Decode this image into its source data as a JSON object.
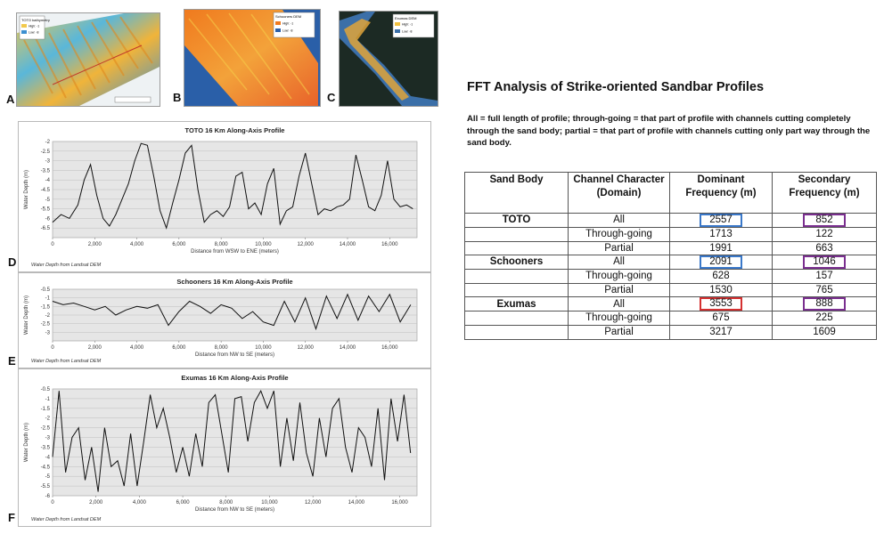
{
  "panel_letters": [
    "A",
    "B",
    "C",
    "D",
    "E",
    "F"
  ],
  "maps": {
    "a": {
      "legend_title": "TOTO bathymetry",
      "legend_items": [
        "High: -1",
        "Low: -8"
      ]
    },
    "b": {
      "legend_title": "Schooners DEM",
      "legend_items": [
        "High: -1",
        "Low: -8"
      ]
    },
    "c": {
      "legend_title": "Exumas DEM",
      "legend_items": [
        "High: -1",
        "Low: -8"
      ]
    }
  },
  "fft": {
    "title": "FFT Analysis of Strike-oriented Sandbar Profiles",
    "description": "All = full length of profile; through-going = that part of profile with channels cutting completely through the sand body; partial = that part of profile with channels cutting only part way through the sand body.",
    "headers": [
      "Sand Body",
      "Channel Character (Domain)",
      "Dominant Frequency (m)",
      "Secondary Frequency (m)"
    ],
    "rows": [
      {
        "sand_body": "TOTO",
        "character": "All",
        "dominant": "2557",
        "secondary": "852",
        "dominant_box": "blue",
        "secondary_box": "purple"
      },
      {
        "sand_body": "",
        "character": "Through-going",
        "dominant": "1713",
        "secondary": "122",
        "dominant_box": "",
        "secondary_box": ""
      },
      {
        "sand_body": "",
        "character": "Partial",
        "dominant": "1991",
        "secondary": "663",
        "dominant_box": "",
        "secondary_box": ""
      },
      {
        "sand_body": "Schooners",
        "character": "All",
        "dominant": "2091",
        "secondary": "1046",
        "dominant_box": "blue",
        "secondary_box": "purple"
      },
      {
        "sand_body": "",
        "character": "Through-going",
        "dominant": "628",
        "secondary": "157",
        "dominant_box": "",
        "secondary_box": ""
      },
      {
        "sand_body": "",
        "character": "Partial",
        "dominant": "1530",
        "secondary": "765",
        "dominant_box": "",
        "secondary_box": ""
      },
      {
        "sand_body": "Exumas",
        "character": "All",
        "dominant": "3553",
        "secondary": "888",
        "dominant_box": "red",
        "secondary_box": "purple"
      },
      {
        "sand_body": "",
        "character": "Through-going",
        "dominant": "675",
        "secondary": "225",
        "dominant_box": "",
        "secondary_box": ""
      },
      {
        "sand_body": "",
        "character": "Partial",
        "dominant": "3217",
        "secondary": "1609",
        "dominant_box": "",
        "secondary_box": ""
      }
    ],
    "colors": {
      "blue": "#3a78c9",
      "red": "#d43131",
      "purple": "#7a2f8f"
    }
  },
  "chart_data": [
    {
      "type": "line",
      "title": "TOTO 16 Km Along-Axis Profile",
      "xlabel": "Distance from WSW to ENE (meters)",
      "ylabel": "Water Depth (m)",
      "source": "Water Depth from Landsat DEM",
      "xlim": [
        0,
        17300
      ],
      "ylim": [
        -7,
        -2
      ],
      "xticks": [
        "0",
        "2,000",
        "4,000",
        "6,000",
        "8,000",
        "10,000",
        "12,000",
        "14,000",
        "16,000"
      ],
      "yticks": [
        "-2",
        "-2.5",
        "-3",
        "-3.5",
        "-4",
        "-4.5",
        "-5",
        "-5.5",
        "-6",
        "-6.5"
      ],
      "series": [
        {
          "x": [
            0,
            400,
            800,
            1200,
            1500,
            1800,
            2100,
            2400,
            2700,
            3000,
            3300,
            3600,
            3900,
            4200,
            4500,
            4800,
            5100,
            5400,
            5700,
            6000,
            6300,
            6600,
            6900,
            7200,
            7500,
            7800,
            8100,
            8400,
            8700,
            9000,
            9300,
            9600,
            9900,
            10200,
            10500,
            10800,
            11100,
            11400,
            11700,
            12000,
            12300,
            12600,
            12900,
            13200,
            13500,
            13800,
            14100,
            14400,
            14700,
            15000,
            15300,
            15600,
            15900,
            16200,
            16500,
            16800,
            17100
          ],
          "y": [
            -6.2,
            -5.8,
            -6.0,
            -5.3,
            -4.0,
            -3.2,
            -4.8,
            -6.0,
            -6.4,
            -5.8,
            -5.0,
            -4.2,
            -3.0,
            -2.1,
            -2.2,
            -3.8,
            -5.6,
            -6.5,
            -5.2,
            -4.0,
            -2.6,
            -2.2,
            -4.5,
            -6.2,
            -5.8,
            -5.6,
            -5.9,
            -5.4,
            -3.8,
            -3.6,
            -5.5,
            -5.2,
            -5.8,
            -4.2,
            -3.4,
            -6.3,
            -5.6,
            -5.4,
            -3.8,
            -2.6,
            -4.2,
            -5.8,
            -5.5,
            -5.6,
            -5.4,
            -5.3,
            -5.0,
            -2.7,
            -4.0,
            -5.4,
            -5.6,
            -4.8,
            -3.0,
            -5.0,
            -5.4,
            -5.3,
            -5.5
          ]
        }
      ]
    },
    {
      "type": "line",
      "title": "Schooners 16 Km Along-Axis Profile",
      "xlabel": "Distance from NW to SE (meters)",
      "ylabel": "Water Depth (m)",
      "source": "Water Depth from Landsat DEM",
      "xlim": [
        0,
        17300
      ],
      "ylim": [
        -3.5,
        -0.5
      ],
      "xticks": [
        "0",
        "2,000",
        "4,000",
        "6,000",
        "8,000",
        "10,000",
        "12,000",
        "14,000",
        "16,000"
      ],
      "yticks": [
        "-0.5",
        "-1",
        "-1.5",
        "-2",
        "-2.5",
        "-3"
      ],
      "series": [
        {
          "x": [
            0,
            500,
            1000,
            1500,
            2000,
            2500,
            3000,
            3500,
            4000,
            4500,
            5000,
            5500,
            6000,
            6500,
            7000,
            7500,
            8000,
            8500,
            9000,
            9500,
            10000,
            10500,
            11000,
            11500,
            12000,
            12500,
            13000,
            13500,
            14000,
            14500,
            15000,
            15500,
            16000,
            16500,
            17000
          ],
          "y": [
            -1.2,
            -1.4,
            -1.3,
            -1.5,
            -1.7,
            -1.5,
            -2.0,
            -1.7,
            -1.5,
            -1.6,
            -1.4,
            -2.6,
            -1.8,
            -1.2,
            -1.5,
            -1.9,
            -1.4,
            -1.6,
            -2.2,
            -1.8,
            -2.4,
            -2.6,
            -1.2,
            -2.4,
            -1.0,
            -2.8,
            -0.9,
            -2.2,
            -0.8,
            -2.3,
            -0.9,
            -1.8,
            -0.8,
            -2.4,
            -1.4
          ]
        }
      ]
    },
    {
      "type": "line",
      "title": "Exumas 16 Km Along-Axis Profile",
      "xlabel": "Distance from NW to SE (meters)",
      "ylabel": "Water Depth (m)",
      "source": "Water Depth from Landsat DEM",
      "xlim": [
        0,
        16800
      ],
      "ylim": [
        -6,
        -0.5
      ],
      "xticks": [
        "0",
        "2,000",
        "4,000",
        "6,000",
        "8,000",
        "10,000",
        "12,000",
        "14,000",
        "16,000"
      ],
      "yticks": [
        "-0.5",
        "-1",
        "-1.5",
        "-2",
        "-2.5",
        "-3",
        "-3.5",
        "-4",
        "-4.5",
        "-5",
        "-5.5",
        "-6"
      ],
      "series": [
        {
          "x": [
            0,
            300,
            600,
            900,
            1200,
            1500,
            1800,
            2100,
            2400,
            2700,
            3000,
            3300,
            3600,
            3900,
            4200,
            4500,
            4800,
            5100,
            5400,
            5700,
            6000,
            6300,
            6600,
            6900,
            7200,
            7500,
            7800,
            8100,
            8400,
            8700,
            9000,
            9300,
            9600,
            9900,
            10200,
            10500,
            10800,
            11100,
            11400,
            11700,
            12000,
            12300,
            12600,
            12900,
            13200,
            13500,
            13800,
            14100,
            14400,
            14700,
            15000,
            15300,
            15600,
            15900,
            16200,
            16500
          ],
          "y": [
            -4.0,
            -0.6,
            -4.8,
            -3.0,
            -2.5,
            -5.2,
            -3.5,
            -5.8,
            -2.5,
            -4.5,
            -4.2,
            -5.5,
            -2.8,
            -5.5,
            -3.2,
            -0.8,
            -2.5,
            -1.5,
            -3.0,
            -4.8,
            -3.5,
            -5.0,
            -2.8,
            -4.5,
            -1.2,
            -0.8,
            -2.8,
            -4.8,
            -1.0,
            -0.9,
            -3.2,
            -1.2,
            -0.6,
            -1.5,
            -0.6,
            -4.5,
            -2.0,
            -4.2,
            -1.2,
            -3.8,
            -5.0,
            -2.0,
            -4.0,
            -1.5,
            -1.0,
            -3.5,
            -4.8,
            -2.5,
            -3.0,
            -4.5,
            -1.5,
            -5.2,
            -1.0,
            -3.2,
            -0.8,
            -3.8
          ]
        }
      ]
    }
  ]
}
